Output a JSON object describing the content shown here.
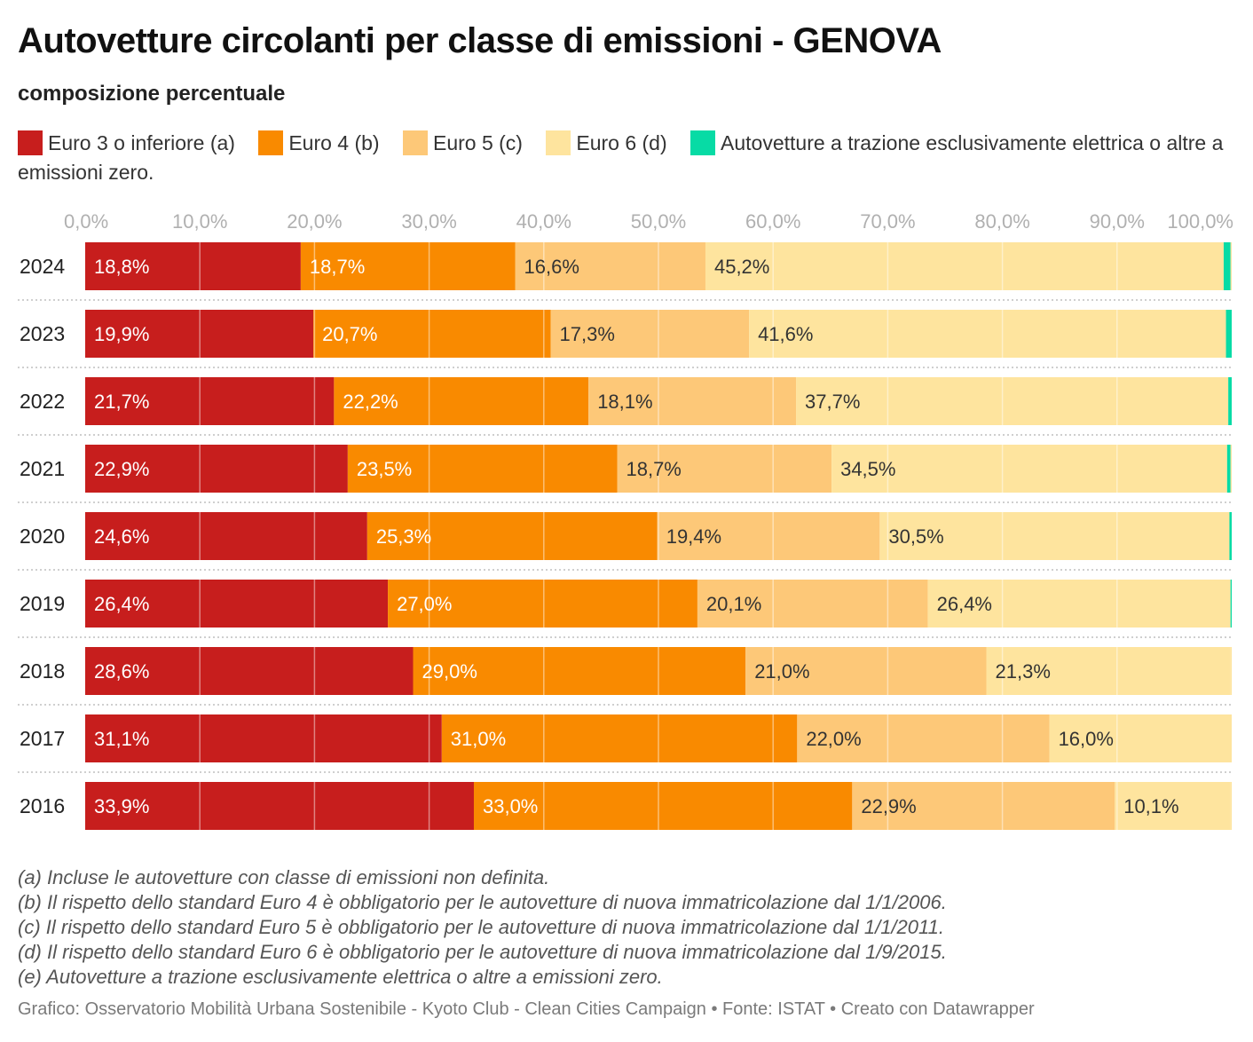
{
  "title": "Autovetture circolanti per classe di emissioni - GENOVA",
  "subtitle": "composizione percentuale",
  "colors": {
    "euro3": "#c71e1d",
    "euro4": "#f98a00",
    "euro5": "#fdc878",
    "euro6": "#fee49e",
    "zero": "#07dba5"
  },
  "chart_data": {
    "type": "bar",
    "orientation": "horizontal-stacked",
    "categories": [
      "2024",
      "2023",
      "2022",
      "2021",
      "2020",
      "2019",
      "2018",
      "2017",
      "2016"
    ],
    "series": [
      {
        "name": "Euro 3 o inferiore (a)",
        "color": "#c71e1d",
        "label_color": "#ffffff",
        "values": [
          18.8,
          19.9,
          21.7,
          22.9,
          24.6,
          26.4,
          28.6,
          31.1,
          33.9
        ]
      },
      {
        "name": "Euro 4 (b)",
        "color": "#f98a00",
        "label_color": "#ffffff",
        "values": [
          18.7,
          20.7,
          22.2,
          23.5,
          25.3,
          27.0,
          29.0,
          31.0,
          33.0
        ]
      },
      {
        "name": "Euro 5 (c)",
        "color": "#fdc878",
        "label_color": "#333333",
        "values": [
          16.6,
          17.3,
          18.1,
          18.7,
          19.4,
          20.1,
          21.0,
          22.0,
          22.9
        ]
      },
      {
        "name": "Euro 6 (d)",
        "color": "#fee49e",
        "label_color": "#333333",
        "values": [
          45.2,
          41.6,
          37.7,
          34.5,
          30.5,
          26.4,
          21.3,
          16.0,
          10.1
        ]
      },
      {
        "name": "Autovetture a trazione esclusivamente elettrica o altre a emissioni zero.",
        "color": "#07dba5",
        "label_color": "#333333",
        "values": [
          0.6,
          0.5,
          0.4,
          0.3,
          0.2,
          0.1,
          0.0,
          0.0,
          0.0
        ]
      }
    ],
    "x_ticks": [
      "0,0%",
      "10,0%",
      "20,0%",
      "30,0%",
      "40,0%",
      "50,0%",
      "60,0%",
      "70,0%",
      "80,0%",
      "90,0%",
      "100,0%"
    ],
    "xlim": [
      0,
      100
    ],
    "value_labels": [
      [
        "18,8%",
        "18,7%",
        "16,6%",
        "45,2%"
      ],
      [
        "19,9%",
        "20,7%",
        "17,3%",
        "41,6%"
      ],
      [
        "21,7%",
        "22,2%",
        "18,1%",
        "37,7%"
      ],
      [
        "22,9%",
        "23,5%",
        "18,7%",
        "34,5%"
      ],
      [
        "24,6%",
        "25,3%",
        "19,4%",
        "30,5%"
      ],
      [
        "26,4%",
        "27,0%",
        "20,1%",
        "26,4%"
      ],
      [
        "28,6%",
        "29,0%",
        "21,0%",
        "21,3%"
      ],
      [
        "31,1%",
        "31,0%",
        "22,0%",
        "16,0%"
      ],
      [
        "33,9%",
        "33,0%",
        "22,9%",
        "10,1%"
      ]
    ],
    "grid": true,
    "legend_position": "top"
  },
  "notes": [
    "(a) Incluse le autovetture con classe di emissioni non definita.",
    "(b) Il rispetto dello standard Euro 4 è obbligatorio per le autovetture di nuova immatricolazione dal 1/1/2006.",
    "(c) Il rispetto dello standard Euro 5 è obbligatorio per le autovetture di nuova immatricolazione dal 1/1/2011.",
    "(d) Il rispetto dello standard Euro 6 è obbligatorio per le autovetture di nuova immatricolazione dal 1/9/2015.",
    "(e) Autovetture a trazione esclusivamente elettrica o altre a emissioni zero."
  ],
  "footer": "Grafico: Osservatorio Mobilità Urbana Sostenibile - Kyoto Club - Clean Cities Campaign • Fonte: ISTAT • Creato con Datawrapper"
}
